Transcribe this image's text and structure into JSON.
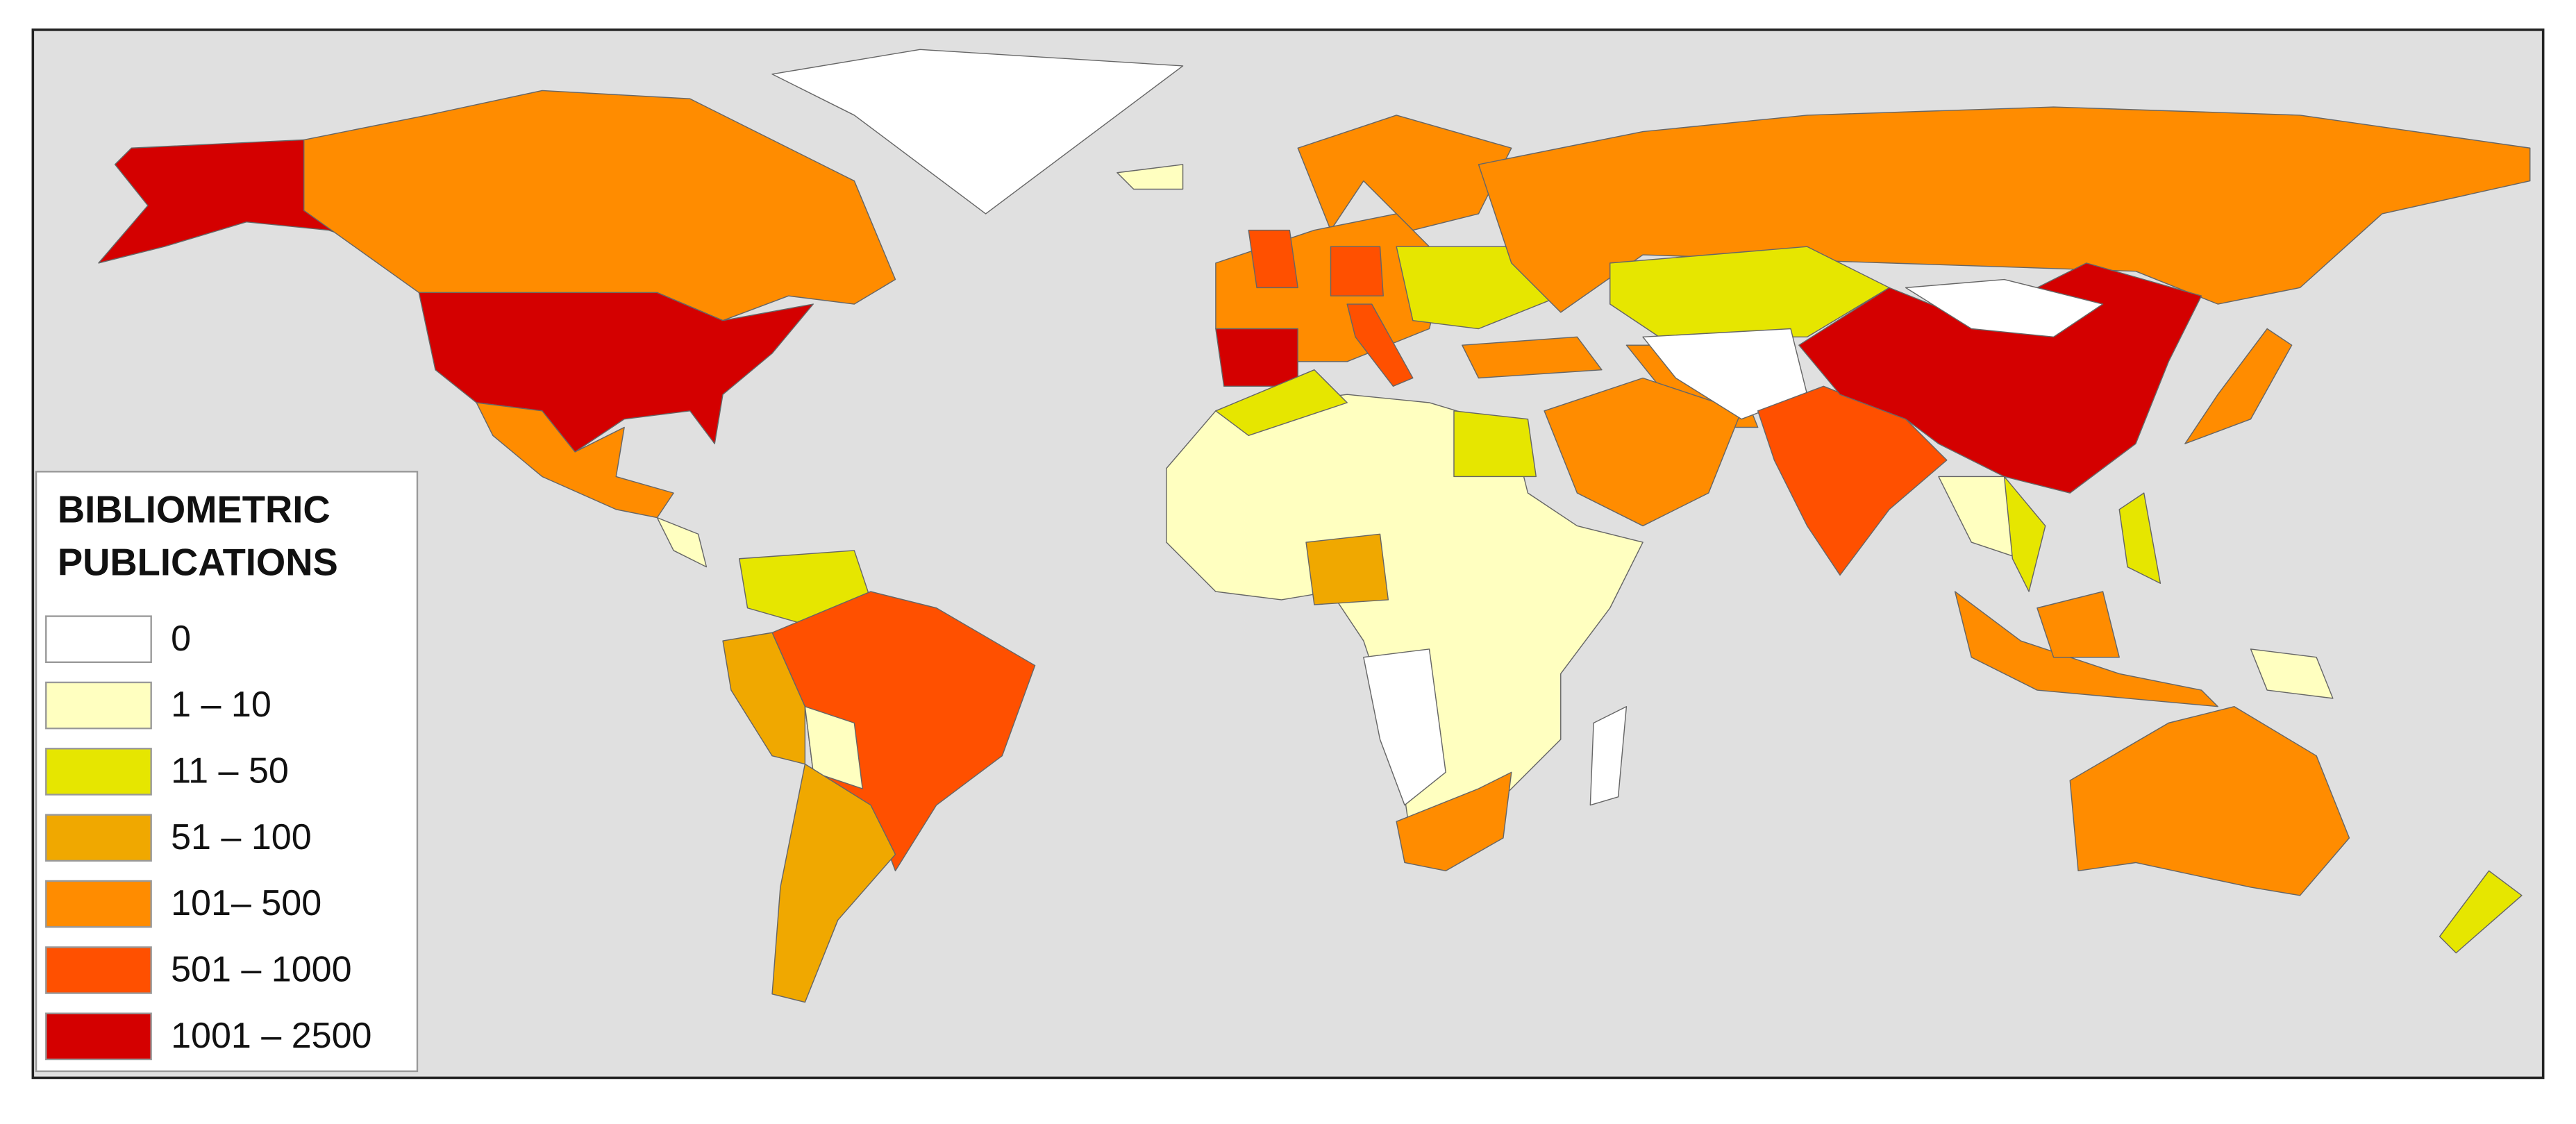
{
  "legend": {
    "title_lines": [
      "BIBLIOMETRIC",
      "PUBLICATIONS"
    ],
    "classes": [
      {
        "label": "0",
        "color": "#ffffff"
      },
      {
        "label": "1 – 10",
        "color": "#ffffc0"
      },
      {
        "label": "11 – 50",
        "color": "#e6e600"
      },
      {
        "label": "51 – 100",
        "color": "#f0a800"
      },
      {
        "label": "101– 500",
        "color": "#ff8c00"
      },
      {
        "label": "501 – 1000",
        "color": "#ff5000"
      },
      {
        "label": "1001 – 2500",
        "color": "#d40000"
      }
    ]
  }
}
